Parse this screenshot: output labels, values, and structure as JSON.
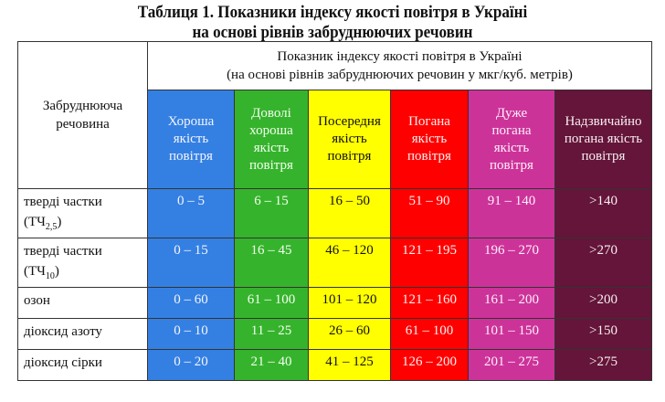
{
  "title": {
    "line1": "Таблиця 1. Показники індексу якості повітря в Україні",
    "line2": "на основі рівнів забруднюючих речовин"
  },
  "header": {
    "pollutant": "Забруднююча речовина",
    "index_line1": "Показник індексу якості повітря в Україні",
    "index_line2": "(на основі рівнів забруднюючих речовин у мкг/куб. метрів)",
    "categories": [
      {
        "label": "Хороша якість повітря",
        "color": "#3480e2"
      },
      {
        "label": "Доволі хороша якість повітря",
        "color": "#36b32c"
      },
      {
        "label": "Посередня якість повітря",
        "color": "#ffff00"
      },
      {
        "label": "Погана якість повітря",
        "color": "#ff0000"
      },
      {
        "label": "Дуже погана якість повітря",
        "color": "#cc3399"
      },
      {
        "label": "Надзвичайно погана якість повітря",
        "color": "#641539"
      }
    ]
  },
  "rows": [
    {
      "name": "тверді частки",
      "formula": "(ТЧ",
      "sub": "2,5",
      "close": ")",
      "values": [
        "0 – 5",
        "6 – 15",
        "16 – 50",
        "51 – 90",
        "91 – 140",
        ">140"
      ]
    },
    {
      "name": "тверді частки",
      "formula": "(ТЧ",
      "sub": "10",
      "close": ")",
      "values": [
        "0 – 15",
        "16 – 45",
        "46 – 120",
        "121 – 195",
        "196 – 270",
        ">270"
      ]
    },
    {
      "name": "озон",
      "values": [
        "0 – 60",
        "61 – 100",
        "101 – 120",
        "121 – 160",
        "161 – 200",
        ">200"
      ]
    },
    {
      "name": "діоксид азоту",
      "values": [
        "0 – 10",
        "11 – 25",
        "26 – 60",
        "61 – 100",
        "101 – 150",
        ">150"
      ]
    },
    {
      "name": "діоксид сірки",
      "values": [
        "0 – 20",
        "21 – 40",
        "41 – 125",
        "126 – 200",
        "201 – 275",
        ">275"
      ]
    }
  ]
}
